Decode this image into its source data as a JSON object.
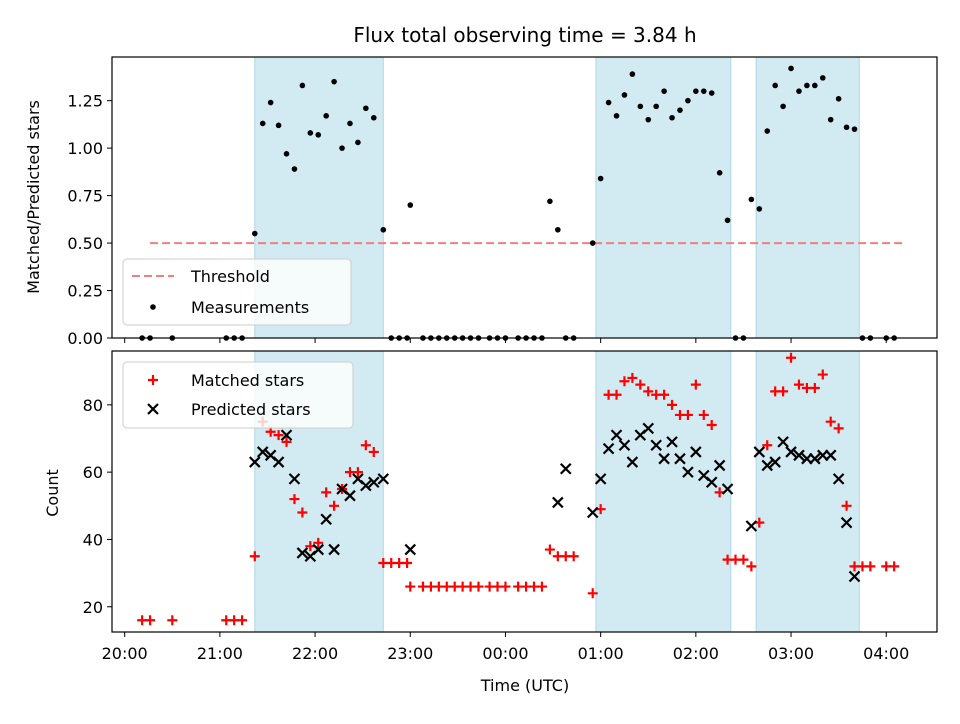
{
  "chart_data": [
    {
      "type": "scatter",
      "title": "Flux total observing time = 3.84 h",
      "ylabel": "Matched/Predicted stars",
      "ylim": [
        0,
        1.48
      ],
      "xlim": [
        "19:52",
        "04:32"
      ],
      "ytick_labels": [
        "0.00",
        "0.25",
        "0.50",
        "0.75",
        "1.00",
        "1.25"
      ],
      "ytick_values": [
        0,
        0.25,
        0.5,
        0.75,
        1.0,
        1.25
      ],
      "shaded_intervals": [
        [
          "21:22",
          "22:43"
        ],
        [
          "00:57",
          "02:22"
        ],
        [
          "02:38",
          "03:43"
        ]
      ],
      "shade_color": "#add8e6",
      "threshold": {
        "name": "Threshold",
        "y": 0.5,
        "x_start": "20:16",
        "x_end": "04:10",
        "color": "#f08080",
        "style": "dashed"
      },
      "series": [
        {
          "name": "Measurements",
          "marker": "dot",
          "color": "#000000",
          "x": [
            "20:11",
            "20:16",
            "20:30",
            "21:04",
            "21:09",
            "21:14",
            "21:22",
            "21:27",
            "21:32",
            "21:37",
            "21:42",
            "21:47",
            "21:52",
            "21:57",
            "22:02",
            "22:07",
            "22:12",
            "22:17",
            "22:22",
            "22:27",
            "22:32",
            "22:37",
            "22:43",
            "22:48",
            "22:53",
            "22:58",
            "23:00",
            "23:08",
            "23:13",
            "23:18",
            "23:23",
            "23:28",
            "23:33",
            "23:38",
            "23:43",
            "23:50",
            "23:55",
            "00:00",
            "00:08",
            "00:13",
            "00:18",
            "00:23",
            "00:28",
            "00:33",
            "00:38",
            "00:43",
            "00:55",
            "01:00",
            "01:05",
            "01:10",
            "01:15",
            "01:20",
            "01:25",
            "01:30",
            "01:35",
            "01:40",
            "01:45",
            "01:50",
            "01:55",
            "02:00",
            "02:05",
            "02:10",
            "02:15",
            "02:20",
            "02:25",
            "02:30",
            "02:35",
            "02:40",
            "02:45",
            "02:50",
            "02:55",
            "03:00",
            "03:05",
            "03:10",
            "03:15",
            "03:20",
            "03:25",
            "03:30",
            "03:35",
            "03:40",
            "03:45",
            "03:50",
            "04:00",
            "04:05"
          ],
          "y": [
            0,
            0,
            0,
            0,
            0,
            0,
            0.55,
            1.13,
            1.24,
            1.12,
            0.97,
            0.89,
            1.33,
            1.08,
            1.07,
            1.17,
            1.35,
            1.0,
            1.13,
            1.03,
            1.21,
            1.16,
            0.57,
            0,
            0,
            0,
            0.7,
            0,
            0,
            0,
            0,
            0,
            0,
            0,
            0,
            0,
            0,
            0,
            0,
            0,
            0,
            0,
            0.72,
            0.57,
            0,
            0,
            0.5,
            0.84,
            1.24,
            1.17,
            1.28,
            1.39,
            1.22,
            1.15,
            1.22,
            1.3,
            1.16,
            1.2,
            1.25,
            1.3,
            1.3,
            1.29,
            0.87,
            0.62,
            0,
            0,
            0.73,
            0.68,
            1.09,
            1.33,
            1.22,
            1.42,
            1.3,
            1.33,
            1.33,
            1.37,
            1.15,
            1.26,
            1.11,
            1.1,
            0,
            0,
            0,
            0
          ]
        }
      ]
    },
    {
      "type": "scatter",
      "xlabel": "Time (UTC)",
      "ylabel": "Count",
      "ylim": [
        12.5,
        96
      ],
      "xlim": [
        "19:52",
        "04:32"
      ],
      "xtick_labels": [
        "20:00",
        "21:00",
        "22:00",
        "23:00",
        "00:00",
        "01:00",
        "02:00",
        "03:00",
        "04:00"
      ],
      "xtick_values": [
        "20:00",
        "21:00",
        "22:00",
        "23:00",
        "00:00",
        "01:00",
        "02:00",
        "03:00",
        "04:00"
      ],
      "ytick_labels": [
        "20",
        "40",
        "60",
        "80"
      ],
      "ytick_values": [
        20,
        40,
        60,
        80
      ],
      "shaded_intervals": [
        [
          "21:22",
          "22:43"
        ],
        [
          "00:57",
          "02:22"
        ],
        [
          "02:38",
          "03:43"
        ]
      ],
      "shade_color": "#add8e6",
      "series": [
        {
          "name": "Matched stars",
          "marker": "plus",
          "color": "#ff0000",
          "x": [
            "20:11",
            "20:16",
            "20:30",
            "21:04",
            "21:09",
            "21:14",
            "21:22",
            "21:27",
            "21:32",
            "21:37",
            "21:42",
            "21:47",
            "21:52",
            "21:57",
            "22:02",
            "22:07",
            "22:12",
            "22:17",
            "22:22",
            "22:27",
            "22:32",
            "22:37",
            "22:43",
            "22:48",
            "22:53",
            "22:58",
            "23:00",
            "23:08",
            "23:13",
            "23:18",
            "23:23",
            "23:28",
            "23:33",
            "23:38",
            "23:43",
            "23:50",
            "23:55",
            "00:00",
            "00:08",
            "00:13",
            "00:18",
            "00:23",
            "00:28",
            "00:33",
            "00:38",
            "00:43",
            "00:55",
            "01:00",
            "01:05",
            "01:10",
            "01:15",
            "01:20",
            "01:25",
            "01:30",
            "01:35",
            "01:40",
            "01:45",
            "01:50",
            "01:55",
            "02:00",
            "02:05",
            "02:10",
            "02:15",
            "02:20",
            "02:25",
            "02:30",
            "02:35",
            "02:40",
            "02:45",
            "02:50",
            "02:55",
            "03:00",
            "03:05",
            "03:10",
            "03:15",
            "03:20",
            "03:25",
            "03:30",
            "03:35",
            "03:40",
            "03:45",
            "03:50",
            "04:00",
            "04:05"
          ],
          "y": [
            16,
            16,
            16,
            16,
            16,
            16,
            35,
            75,
            72,
            71,
            69,
            52,
            48,
            38,
            39,
            54,
            50,
            55,
            60,
            60,
            68,
            66,
            33,
            33,
            33,
            33,
            26,
            26,
            26,
            26,
            26,
            26,
            26,
            26,
            26,
            26,
            26,
            26,
            26,
            26,
            26,
            26,
            37,
            35,
            35,
            35,
            24,
            49,
            83,
            83,
            87,
            88,
            86,
            84,
            83,
            83,
            80,
            77,
            77,
            86,
            77,
            74,
            54,
            34,
            34,
            34,
            32,
            45,
            68,
            84,
            84,
            94,
            86,
            85,
            85,
            89,
            75,
            73,
            50,
            32,
            32,
            32,
            32,
            32
          ]
        },
        {
          "name": "Predicted stars",
          "marker": "x",
          "color": "#000000",
          "x": [
            "21:22",
            "21:27",
            "21:32",
            "21:37",
            "21:42",
            "21:47",
            "21:52",
            "21:57",
            "22:02",
            "22:07",
            "22:12",
            "22:17",
            "22:22",
            "22:27",
            "22:32",
            "22:37",
            "22:43",
            "23:00",
            "00:33",
            "00:38",
            "00:55",
            "01:00",
            "01:05",
            "01:10",
            "01:15",
            "01:20",
            "01:25",
            "01:30",
            "01:35",
            "01:40",
            "01:45",
            "01:50",
            "01:55",
            "02:00",
            "02:05",
            "02:10",
            "02:15",
            "02:20",
            "02:35",
            "02:40",
            "02:45",
            "02:50",
            "02:55",
            "03:00",
            "03:05",
            "03:10",
            "03:15",
            "03:20",
            "03:25",
            "03:30",
            "03:35",
            "03:40"
          ],
          "y": [
            63,
            66,
            65,
            63,
            71,
            58,
            36,
            35,
            37,
            46,
            37,
            55,
            53,
            58,
            56,
            57,
            58,
            37,
            51,
            61,
            48,
            58,
            67,
            71,
            68,
            63,
            71,
            73,
            68,
            64,
            69,
            64,
            60,
            66,
            59,
            57,
            62,
            55,
            44,
            66,
            62,
            63,
            69,
            66,
            65,
            64,
            64,
            65,
            65,
            58,
            45,
            29
          ]
        }
      ]
    }
  ]
}
